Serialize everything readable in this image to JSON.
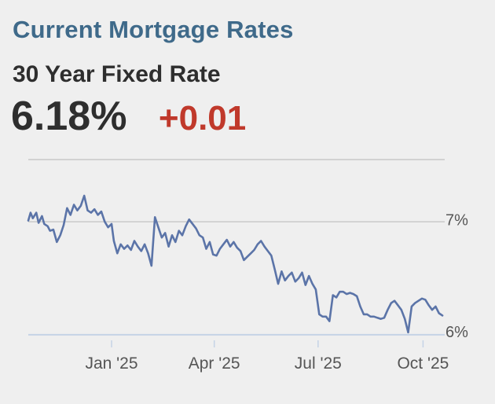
{
  "header": {
    "title": "Current Mortgage Rates"
  },
  "rate": {
    "name": "30 Year Fixed Rate",
    "value": "6.18%",
    "change": "+0.01"
  },
  "colors": {
    "title": "#3f6a8a",
    "change": "#c0392b",
    "line": "#5b74a8",
    "grid": "#c9c9c9",
    "xaxis": "#c5d3e6"
  },
  "chart_data": {
    "type": "line",
    "title": "",
    "xlabel": "",
    "ylabel": "",
    "x_ticks": [
      "Jan '25",
      "Apr '25",
      "Jul '25",
      "Oct '25"
    ],
    "x_tick_dates": [
      "2025-01-01",
      "2025-04-01",
      "2025-07-01",
      "2025-10-01"
    ],
    "y_ticks": [
      "7%",
      "6%"
    ],
    "y_tick_values": [
      7.0,
      6.0
    ],
    "xlim": [
      "2024-10-20",
      "2025-10-20"
    ],
    "ylim": [
      5.95,
      7.55
    ],
    "grid": true,
    "series": [
      {
        "name": "",
        "x": [
          "2024-10-20",
          "2024-10-22",
          "2024-10-24",
          "2024-10-27",
          "2024-10-29",
          "2024-11-01",
          "2024-11-03",
          "2024-11-06",
          "2024-11-08",
          "2024-11-11",
          "2024-11-14",
          "2024-11-17",
          "2024-11-20",
          "2024-11-23",
          "2024-11-26",
          "2024-11-29",
          "2024-12-02",
          "2024-12-05",
          "2024-12-08",
          "2024-12-11",
          "2024-12-14",
          "2024-12-17",
          "2024-12-20",
          "2024-12-23",
          "2024-12-26",
          "2024-12-29",
          "2025-01-01",
          "2025-01-03",
          "2025-01-06",
          "2025-01-09",
          "2025-01-12",
          "2025-01-15",
          "2025-01-18",
          "2025-01-21",
          "2025-01-24",
          "2025-01-27",
          "2025-01-30",
          "2025-02-02",
          "2025-02-05",
          "2025-02-08",
          "2025-02-11",
          "2025-02-14",
          "2025-02-17",
          "2025-02-20",
          "2025-02-23",
          "2025-02-26",
          "2025-03-01",
          "2025-03-04",
          "2025-03-07",
          "2025-03-10",
          "2025-03-13",
          "2025-03-16",
          "2025-03-19",
          "2025-03-22",
          "2025-03-25",
          "2025-03-28",
          "2025-03-31",
          "2025-04-03",
          "2025-04-06",
          "2025-04-09",
          "2025-04-12",
          "2025-04-15",
          "2025-04-18",
          "2025-04-21",
          "2025-04-24",
          "2025-04-27",
          "2025-04-30",
          "2025-05-03",
          "2025-05-06",
          "2025-05-09",
          "2025-05-12",
          "2025-05-15",
          "2025-05-18",
          "2025-05-21",
          "2025-05-24",
          "2025-05-27",
          "2025-05-30",
          "2025-06-02",
          "2025-06-05",
          "2025-06-08",
          "2025-06-11",
          "2025-06-14",
          "2025-06-17",
          "2025-06-20",
          "2025-06-23",
          "2025-06-26",
          "2025-06-29",
          "2025-07-02",
          "2025-07-05",
          "2025-07-08",
          "2025-07-11",
          "2025-07-14",
          "2025-07-17",
          "2025-07-20",
          "2025-07-23",
          "2025-07-26",
          "2025-07-29",
          "2025-08-01",
          "2025-08-04",
          "2025-08-07",
          "2025-08-10",
          "2025-08-13",
          "2025-08-16",
          "2025-08-19",
          "2025-08-22",
          "2025-08-25",
          "2025-08-28",
          "2025-08-31",
          "2025-09-03",
          "2025-09-06",
          "2025-09-09",
          "2025-09-12",
          "2025-09-15",
          "2025-09-18",
          "2025-09-21",
          "2025-09-24",
          "2025-09-27",
          "2025-09-30",
          "2025-10-03",
          "2025-10-06",
          "2025-10-09",
          "2025-10-12",
          "2025-10-15",
          "2025-10-18"
        ],
        "y": [
          7.01,
          7.08,
          7.03,
          7.08,
          6.99,
          7.05,
          6.98,
          6.96,
          6.92,
          6.93,
          6.82,
          6.88,
          6.97,
          7.12,
          7.06,
          7.15,
          7.1,
          7.14,
          7.23,
          7.1,
          7.08,
          7.11,
          7.06,
          7.09,
          7.0,
          6.95,
          6.98,
          6.83,
          6.72,
          6.8,
          6.76,
          6.79,
          6.75,
          6.83,
          6.78,
          6.74,
          6.8,
          6.72,
          6.61,
          7.04,
          6.95,
          6.86,
          6.9,
          6.78,
          6.88,
          6.82,
          6.92,
          6.88,
          6.96,
          7.02,
          6.98,
          6.94,
          6.88,
          6.86,
          6.76,
          6.82,
          6.71,
          6.7,
          6.76,
          6.8,
          6.84,
          6.78,
          6.82,
          6.77,
          6.74,
          6.66,
          6.69,
          6.72,
          6.75,
          6.8,
          6.83,
          6.78,
          6.74,
          6.7,
          6.58,
          6.45,
          6.56,
          6.48,
          6.52,
          6.55,
          6.47,
          6.5,
          6.55,
          6.44,
          6.52,
          6.45,
          6.4,
          6.18,
          6.16,
          6.16,
          6.12,
          6.35,
          6.33,
          6.38,
          6.38,
          6.36,
          6.37,
          6.36,
          6.34,
          6.25,
          6.18,
          6.18,
          6.16,
          6.16,
          6.15,
          6.14,
          6.15,
          6.22,
          6.28,
          6.3,
          6.26,
          6.22,
          6.14,
          6.02,
          6.25,
          6.28,
          6.3,
          6.32,
          6.31,
          6.26,
          6.22,
          6.25,
          6.19,
          6.17
        ]
      }
    ]
  }
}
